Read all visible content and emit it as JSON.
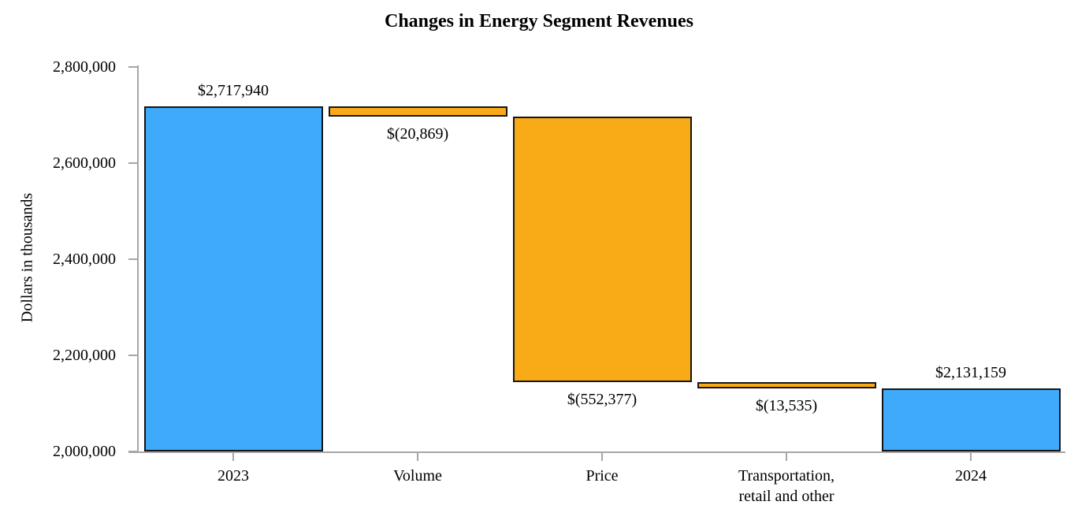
{
  "chart_data": {
    "type": "waterfall",
    "title": "Changes in Energy Segment Revenues",
    "ylabel": "Dollars in thousands",
    "ylim": [
      2000000,
      2800000
    ],
    "grid": false,
    "legend": false,
    "y_ticks": [
      {
        "value": 2800000,
        "label": "2,800,000"
      },
      {
        "value": 2600000,
        "label": "2,600,000"
      },
      {
        "value": 2400000,
        "label": "2,400,000"
      },
      {
        "value": 2200000,
        "label": "2,200,000"
      },
      {
        "value": 2000000,
        "label": "2,000,000"
      }
    ],
    "bars": [
      {
        "category": "2023",
        "category_lines": [
          "2023"
        ],
        "kind": "total",
        "value": 2717940,
        "label": "$2,717,940",
        "label_position": "above"
      },
      {
        "category": "Volume",
        "category_lines": [
          "Volume"
        ],
        "kind": "decrease",
        "value": -20869,
        "label": "$(20,869)",
        "label_position": "below"
      },
      {
        "category": "Price",
        "category_lines": [
          "Price"
        ],
        "kind": "decrease",
        "value": -552377,
        "label": "$(552,377)",
        "label_position": "below"
      },
      {
        "category": "Transportation, retail and other",
        "category_lines": [
          "Transportation,",
          "retail and other"
        ],
        "kind": "decrease",
        "value": -13535,
        "label": "$(13,535)",
        "label_position": "below"
      },
      {
        "category": "2024",
        "category_lines": [
          "2024"
        ],
        "kind": "total",
        "value": 2131159,
        "label": "$2,131,159",
        "label_position": "above"
      }
    ],
    "colors": {
      "total_bar": "#3fa9fa",
      "decrease_bar": "#f8ab17",
      "bar_border": "#15151a",
      "axis": "#a6a6a6",
      "text": "#000000",
      "background": "#ffffff"
    }
  }
}
